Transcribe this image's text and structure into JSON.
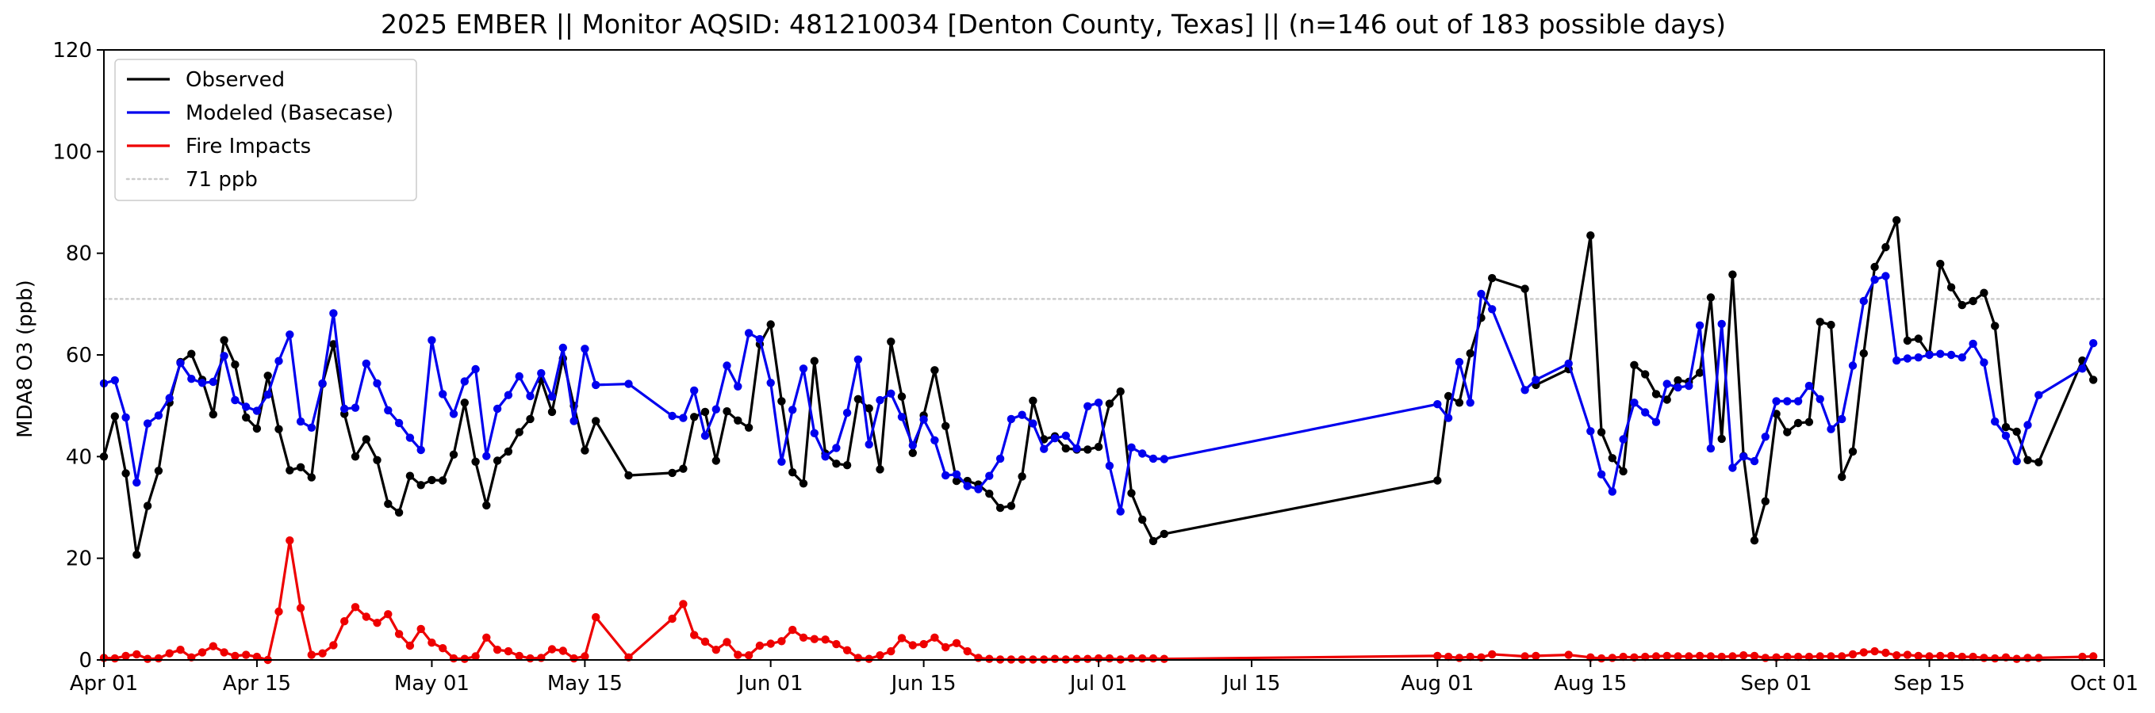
{
  "chart_data": {
    "type": "line",
    "title": "2025 EMBER || Monitor AQSID: 481210034 [Denton County, Texas] || (n=146 out of 183 possible days)",
    "xlabel": "",
    "ylabel": "MDA8 O3 (ppb)",
    "xlim": [
      "2025-04-01",
      "2025-10-01"
    ],
    "ylim": [
      0,
      120
    ],
    "yticks": [
      0,
      20,
      40,
      60,
      80,
      100,
      120
    ],
    "xticks": [
      {
        "date": "2025-04-01",
        "label": "Apr 01"
      },
      {
        "date": "2025-04-15",
        "label": "Apr 15"
      },
      {
        "date": "2025-05-01",
        "label": "May 01"
      },
      {
        "date": "2025-05-15",
        "label": "May 15"
      },
      {
        "date": "2025-06-01",
        "label": "Jun 01"
      },
      {
        "date": "2025-06-15",
        "label": "Jun 15"
      },
      {
        "date": "2025-07-01",
        "label": "Jul 01"
      },
      {
        "date": "2025-07-15",
        "label": "Jul 15"
      },
      {
        "date": "2025-08-01",
        "label": "Aug 01"
      },
      {
        "date": "2025-08-15",
        "label": "Aug 15"
      },
      {
        "date": "2025-09-01",
        "label": "Sep 01"
      },
      {
        "date": "2025-09-15",
        "label": "Sep 15"
      },
      {
        "date": "2025-10-01",
        "label": "Oct 01"
      }
    ],
    "grid": false,
    "legend_position": "top-left",
    "dates": [
      "2025-04-01",
      "2025-04-02",
      "2025-04-03",
      "2025-04-04",
      "2025-04-05",
      "2025-04-06",
      "2025-04-07",
      "2025-04-08",
      "2025-04-09",
      "2025-04-10",
      "2025-04-11",
      "2025-04-12",
      "2025-04-13",
      "2025-04-14",
      "2025-04-15",
      "2025-04-16",
      "2025-04-17",
      "2025-04-18",
      "2025-04-19",
      "2025-04-20",
      "2025-04-21",
      "2025-04-22",
      "2025-04-23",
      "2025-04-24",
      "2025-04-25",
      "2025-04-26",
      "2025-04-27",
      "2025-04-28",
      "2025-04-29",
      "2025-04-30",
      "2025-05-01",
      "2025-05-02",
      "2025-05-03",
      "2025-05-04",
      "2025-05-05",
      "2025-05-06",
      "2025-05-07",
      "2025-05-08",
      "2025-05-09",
      "2025-05-10",
      "2025-05-11",
      "2025-05-12",
      "2025-05-13",
      "2025-05-14",
      "2025-05-15",
      "2025-05-16",
      "2025-05-19",
      "2025-05-23",
      "2025-05-24",
      "2025-05-25",
      "2025-05-26",
      "2025-05-27",
      "2025-05-28",
      "2025-05-29",
      "2025-05-30",
      "2025-05-31",
      "2025-06-01",
      "2025-06-02",
      "2025-06-03",
      "2025-06-04",
      "2025-06-05",
      "2025-06-06",
      "2025-06-07",
      "2025-06-08",
      "2025-06-09",
      "2025-06-10",
      "2025-06-11",
      "2025-06-12",
      "2025-06-13",
      "2025-06-14",
      "2025-06-15",
      "2025-06-16",
      "2025-06-17",
      "2025-06-18",
      "2025-06-19",
      "2025-06-20",
      "2025-06-21",
      "2025-06-22",
      "2025-06-23",
      "2025-06-24",
      "2025-06-25",
      "2025-06-26",
      "2025-06-27",
      "2025-06-28",
      "2025-06-29",
      "2025-06-30",
      "2025-07-01",
      "2025-07-02",
      "2025-07-03",
      "2025-07-04",
      "2025-07-05",
      "2025-07-06",
      "2025-07-07",
      "2025-08-01",
      "2025-08-02",
      "2025-08-03",
      "2025-08-04",
      "2025-08-05",
      "2025-08-06",
      "2025-08-09",
      "2025-08-10",
      "2025-08-13",
      "2025-08-15",
      "2025-08-16",
      "2025-08-17",
      "2025-08-18",
      "2025-08-19",
      "2025-08-20",
      "2025-08-21",
      "2025-08-22",
      "2025-08-23",
      "2025-08-24",
      "2025-08-25",
      "2025-08-26",
      "2025-08-27",
      "2025-08-28",
      "2025-08-29",
      "2025-08-30",
      "2025-08-31",
      "2025-09-01",
      "2025-09-02",
      "2025-09-03",
      "2025-09-04",
      "2025-09-05",
      "2025-09-06",
      "2025-09-07",
      "2025-09-08",
      "2025-09-09",
      "2025-09-10",
      "2025-09-11",
      "2025-09-12",
      "2025-09-13",
      "2025-09-14",
      "2025-09-15",
      "2025-09-16",
      "2025-09-17",
      "2025-09-18",
      "2025-09-19",
      "2025-09-20",
      "2025-09-21",
      "2025-09-22",
      "2025-09-23",
      "2025-09-24",
      "2025-09-25",
      "2025-09-29",
      "2025-09-30"
    ],
    "series": [
      {
        "name": "Observed",
        "color": "#000000",
        "values": [
          40.0,
          47.9,
          36.7,
          20.7,
          30.3,
          37.2,
          50.6,
          58.6,
          60.2,
          55.1,
          48.3,
          62.9,
          58.1,
          47.7,
          45.5,
          55.9,
          45.4,
          37.3,
          37.9,
          35.9,
          54.3,
          62.1,
          48.4,
          40.0,
          43.4,
          39.3,
          30.7,
          29.0,
          36.2,
          34.4,
          35.4,
          35.3,
          40.4,
          50.6,
          39.0,
          30.4,
          39.2,
          41.0,
          44.8,
          47.4,
          55.1,
          48.8,
          59.3,
          50.0,
          41.2,
          47.0,
          36.3,
          36.8,
          37.6,
          47.8,
          48.8,
          39.2,
          48.9,
          47.1,
          45.7,
          62.1,
          66.0,
          50.9,
          36.9,
          34.7,
          58.8,
          40.6,
          38.6,
          38.3,
          51.3,
          49.5,
          37.5,
          62.6,
          51.8,
          40.7,
          48.1,
          57.0,
          46.0,
          35.2,
          35.2,
          34.5,
          32.7,
          29.9,
          30.3,
          36.1,
          51.0,
          43.4,
          44.0,
          41.6,
          41.4,
          41.4,
          41.9,
          50.4,
          52.8,
          32.8,
          27.6,
          23.4,
          24.8,
          35.3,
          51.9,
          50.6,
          60.3,
          67.3,
          75.1,
          73.0,
          54.1,
          57.2,
          83.5,
          44.8,
          39.7,
          37.1,
          58.0,
          56.2,
          52.3,
          51.2,
          55.0,
          54.7,
          56.5,
          71.3,
          43.5,
          75.8,
          40.1,
          23.5,
          31.2,
          48.4,
          44.8,
          46.6,
          46.8,
          66.5,
          65.9,
          36.0,
          41.0,
          60.3,
          77.3,
          81.2,
          86.5,
          62.8,
          63.2,
          60.1,
          77.9,
          73.3,
          69.8,
          70.6,
          72.2,
          65.7,
          45.8,
          44.9,
          39.3,
          38.9,
          58.9,
          55.1
        ]
      },
      {
        "name": "Modeled (Basecase)",
        "color": "#0000ee",
        "values": [
          54.4,
          55.0,
          47.7,
          34.9,
          46.5,
          48.1,
          51.5,
          58.4,
          55.3,
          54.5,
          54.7,
          59.8,
          51.1,
          49.8,
          49.0,
          52.2,
          58.8,
          64.0,
          46.9,
          45.7,
          54.4,
          68.2,
          49.4,
          49.6,
          58.3,
          54.4,
          49.1,
          46.6,
          43.7,
          41.3,
          62.9,
          52.3,
          48.4,
          54.8,
          57.2,
          40.1,
          49.4,
          52.1,
          55.8,
          51.9,
          56.4,
          51.8,
          61.4,
          47.0,
          61.2,
          54.1,
          54.3,
          48.0,
          47.6,
          53.0,
          44.1,
          49.3,
          57.9,
          53.8,
          64.3,
          63.1,
          54.5,
          39.0,
          49.2,
          57.3,
          44.6,
          40.0,
          41.7,
          48.6,
          59.1,
          42.4,
          51.1,
          52.4,
          47.8,
          42.2,
          47.3,
          43.2,
          36.3,
          36.5,
          34.2,
          33.6,
          36.2,
          39.6,
          47.4,
          48.2,
          46.5,
          41.5,
          43.6,
          44.1,
          41.6,
          49.9,
          50.6,
          38.2,
          29.2,
          41.8,
          40.6,
          39.6,
          39.5,
          50.3,
          47.6,
          58.6,
          50.6,
          72.0,
          69.0,
          53.1,
          55.1,
          58.3,
          45.0,
          36.5,
          33.1,
          43.4,
          50.6,
          48.7,
          46.8,
          54.3,
          53.6,
          53.9,
          65.8,
          41.6,
          66.1,
          37.8,
          40.0,
          39.1,
          43.9,
          50.9,
          50.9,
          50.9,
          53.9,
          51.3,
          45.4,
          47.4,
          57.9,
          70.6,
          74.8,
          75.5,
          58.9,
          59.3,
          59.5,
          60.0,
          60.2,
          60.0,
          59.5,
          62.2,
          58.5,
          46.9,
          44.1,
          39.1,
          46.2,
          52.1,
          57.3,
          62.3
        ]
      },
      {
        "name": "Fire Impacts",
        "color": "#ee0000",
        "values": [
          0.4,
          0.3,
          0.8,
          1.1,
          0.2,
          0.3,
          1.3,
          2.0,
          0.5,
          1.5,
          2.7,
          1.5,
          0.8,
          1.0,
          0.6,
          0.0,
          9.5,
          23.5,
          10.2,
          1.0,
          1.3,
          2.9,
          7.6,
          10.4,
          8.5,
          7.3,
          9.0,
          5.1,
          2.8,
          6.1,
          3.4,
          2.3,
          0.3,
          0.2,
          0.7,
          4.4,
          2.0,
          1.7,
          0.8,
          0.3,
          0.4,
          2.1,
          1.8,
          0.3,
          0.7,
          8.4,
          0.5,
          8.1,
          11.0,
          4.9,
          3.6,
          2.0,
          3.5,
          1.0,
          0.9,
          2.8,
          3.2,
          3.7,
          5.9,
          4.4,
          4.1,
          4.0,
          3.1,
          1.9,
          0.4,
          0.2,
          0.9,
          1.7,
          4.3,
          2.9,
          3.1,
          4.4,
          2.5,
          3.3,
          1.7,
          0.4,
          0.2,
          0.1,
          0.1,
          0.1,
          0.1,
          0.1,
          0.2,
          0.1,
          0.2,
          0.2,
          0.3,
          0.3,
          0.1,
          0.3,
          0.3,
          0.3,
          0.2,
          0.8,
          0.6,
          0.4,
          0.6,
          0.5,
          1.1,
          0.7,
          0.8,
          1.0,
          0.5,
          0.3,
          0.4,
          0.6,
          0.5,
          0.6,
          0.7,
          0.8,
          0.7,
          0.7,
          0.8,
          0.7,
          0.6,
          0.7,
          0.9,
          0.8,
          0.4,
          0.5,
          0.6,
          0.6,
          0.6,
          0.7,
          0.7,
          0.7,
          1.1,
          1.5,
          1.7,
          1.4,
          0.9,
          1.0,
          0.8,
          0.7,
          0.8,
          0.8,
          0.6,
          0.6,
          0.4,
          0.3,
          0.5,
          0.2,
          0.4,
          0.4,
          0.6,
          0.7
        ]
      }
    ],
    "reference_lines": [
      {
        "name": "71 ppb",
        "y": 71,
        "color": "#cccccc",
        "style": "dotted"
      }
    ]
  }
}
